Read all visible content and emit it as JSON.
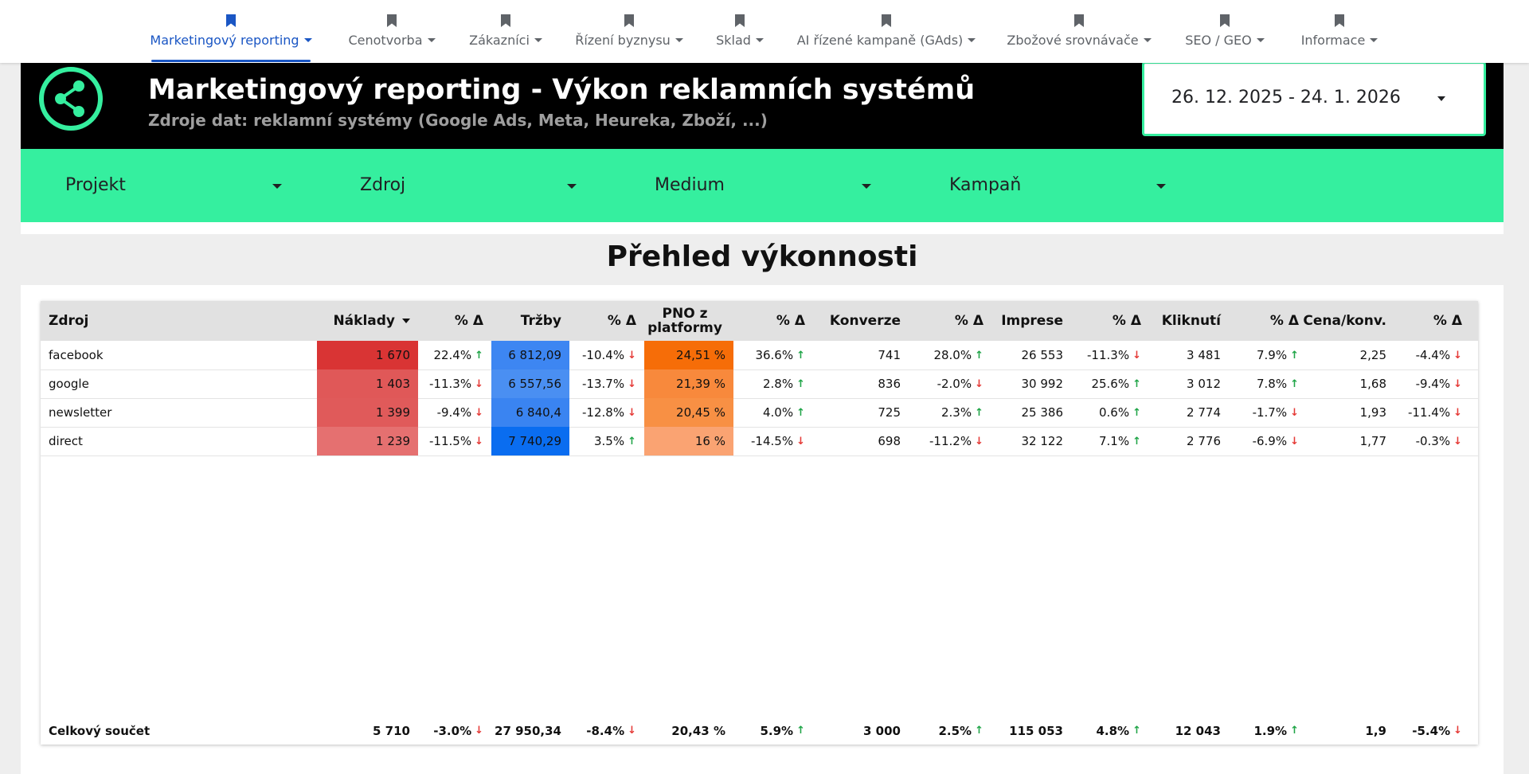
{
  "nav": {
    "items": [
      {
        "label": "Marketingový reporting",
        "active": true
      },
      {
        "label": "Cenotvorba"
      },
      {
        "label": "Zákazníci"
      },
      {
        "label": "Řízení byznysu"
      },
      {
        "label": "Sklad"
      },
      {
        "label": "AI řízené kampaně (GAds)"
      },
      {
        "label": "Zbožové srovnávače"
      },
      {
        "label": "SEO / GEO"
      },
      {
        "label": "Informace"
      }
    ]
  },
  "header": {
    "title": "Marketingový reporting - Výkon reklamních systémů",
    "subtitle": "Zdroje dat: reklamní systémy (Google Ads, Meta, Heureka, Zboží, ...)",
    "logo_icon": "share-icon",
    "date_range": "26. 12. 2025 - 24. 1. 2026"
  },
  "filters": [
    "Projekt",
    "Zdroj",
    "Medium",
    "Kampaň"
  ],
  "section": {
    "title": "Přehled výkonnosti"
  },
  "colors": {
    "accent_green": "#35ef9f",
    "header_black": "#000000",
    "active_blue": "#1a56c4",
    "arrow_up": "#1ea446",
    "arrow_down": "#e53935"
  },
  "table": {
    "headers": [
      "Zdroj",
      "Náklady",
      "% Δ",
      "Tržby",
      "% Δ",
      "PNO z platformy",
      "% Δ",
      "Konverze",
      "% Δ",
      "Imprese",
      "% Δ",
      "Kliknutí",
      "% Δ",
      "Cena/konv.",
      "% Δ"
    ],
    "header_pno_line1": "PNO z",
    "header_pno_line2": "platformy",
    "sorted_column": "Náklady",
    "rows": [
      {
        "zdroj": "facebook",
        "naklady": "1 670",
        "naklady_d": "22.4%",
        "naklady_dir": "up",
        "trzby": "6 812,09",
        "trzby_d": "-10.4%",
        "trzby_dir": "down",
        "pno": "24,51 %",
        "pno_d": "36.6%",
        "pno_dir": "up",
        "konverze": "741",
        "konverze_d": "28.0%",
        "konverze_dir": "up",
        "imprese": "26 553",
        "imprese_d": "-11.3%",
        "imprese_dir": "down",
        "kliknuti": "3 481",
        "kliknuti_d": "7.9%",
        "kliknuti_dir": "up",
        "cena": "2,25",
        "cena_d": "-4.4%",
        "cena_dir": "down",
        "naklady_bg": "#d93434",
        "trzby_bg": "#3d86f2",
        "pno_bg": "#f66d08"
      },
      {
        "zdroj": "google",
        "naklady": "1 403",
        "naklady_d": "-11.3%",
        "naklady_dir": "down",
        "trzby": "6 557,56",
        "trzby_d": "-13.7%",
        "trzby_dir": "down",
        "pno": "21,39 %",
        "pno_d": "2.8%",
        "pno_dir": "up",
        "konverze": "836",
        "konverze_d": "-2.0%",
        "konverze_dir": "down",
        "imprese": "30 992",
        "imprese_d": "25.6%",
        "imprese_dir": "up",
        "kliknuti": "3 012",
        "kliknuti_d": "7.8%",
        "kliknuti_dir": "up",
        "cena": "1,68",
        "cena_d": "-9.4%",
        "cena_dir": "down",
        "naklady_bg": "#e05858",
        "trzby_bg": "#4a8ff2",
        "pno_bg": "#f8893c"
      },
      {
        "zdroj": "newsletter",
        "naklady": "1 399",
        "naklady_d": "-9.4%",
        "naklady_dir": "down",
        "trzby": "6 840,4",
        "trzby_d": "-12.8%",
        "trzby_dir": "down",
        "pno": "20,45 %",
        "pno_d": "4.0%",
        "pno_dir": "up",
        "konverze": "725",
        "konverze_d": "2.3%",
        "konverze_dir": "up",
        "imprese": "25 386",
        "imprese_d": "0.6%",
        "imprese_dir": "up",
        "kliknuti": "2 774",
        "kliknuti_d": "-1.7%",
        "kliknuti_dir": "down",
        "cena": "1,93",
        "cena_d": "-11.4%",
        "cena_dir": "down",
        "naklady_bg": "#e05a5a",
        "trzby_bg": "#3a84f1",
        "pno_bg": "#f89044"
      },
      {
        "zdroj": "direct",
        "naklady": "1 239",
        "naklady_d": "-11.5%",
        "naklady_dir": "down",
        "trzby": "7 740,29",
        "trzby_d": "3.5%",
        "trzby_dir": "up",
        "pno": "16 %",
        "pno_d": "-14.5%",
        "pno_dir": "down",
        "konverze": "698",
        "konverze_d": "-11.2%",
        "konverze_dir": "down",
        "imprese": "32 122",
        "imprese_d": "7.1%",
        "imprese_dir": "up",
        "kliknuti": "2 776",
        "kliknuti_d": "-6.9%",
        "kliknuti_dir": "down",
        "cena": "1,77",
        "cena_d": "-0.3%",
        "cena_dir": "down",
        "naklady_bg": "#e57070",
        "trzby_bg": "#0a6df0",
        "pno_bg": "#faa372"
      }
    ],
    "total": {
      "zdroj": "Celkový součet",
      "naklady": "5 710",
      "naklady_d": "-3.0%",
      "naklady_dir": "down",
      "trzby": "27 950,34",
      "trzby_d": "-8.4%",
      "trzby_dir": "down",
      "pno": "20,43 %",
      "pno_d": "5.9%",
      "pno_dir": "up",
      "konverze": "3 000",
      "konverze_d": "2.5%",
      "konverze_dir": "up",
      "imprese": "115 053",
      "imprese_d": "4.8%",
      "imprese_dir": "up",
      "kliknuti": "12 043",
      "kliknuti_d": "1.9%",
      "kliknuti_dir": "up",
      "cena": "1,9",
      "cena_d": "-5.4%",
      "cena_dir": "down"
    }
  }
}
